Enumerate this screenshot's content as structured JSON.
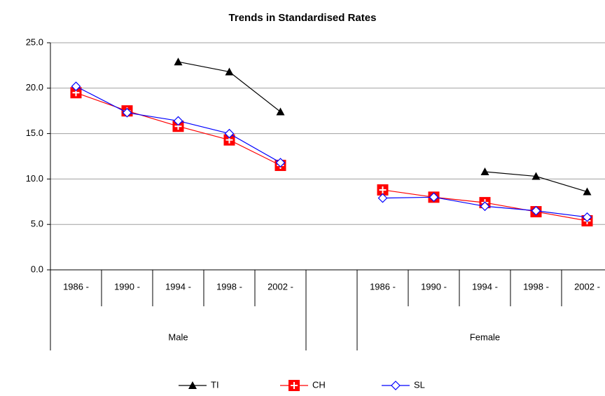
{
  "chart_data": {
    "type": "line",
    "title": "Trends in Standardised Rates",
    "categories": [
      "1986 -",
      "1990 -",
      "1994 -",
      "1998 -",
      "2002 -",
      null,
      "1986 -",
      "1990 -",
      "1994 -",
      "1998 -",
      "2002 -"
    ],
    "groups": [
      "Male",
      "Female"
    ],
    "series": [
      {
        "name": "TI",
        "color": "#000000",
        "marker": "triangle",
        "values": [
          null,
          null,
          22.9,
          21.8,
          17.4,
          null,
          null,
          null,
          10.8,
          10.3,
          8.6
        ]
      },
      {
        "name": "CH",
        "color": "#ff0000",
        "marker": "square-plus",
        "values": [
          19.5,
          17.5,
          15.8,
          14.3,
          11.5,
          null,
          8.8,
          8.0,
          7.4,
          6.4,
          5.4
        ]
      },
      {
        "name": "SL",
        "color": "#0000ff",
        "marker": "diamond",
        "values": [
          20.2,
          17.3,
          16.4,
          15.0,
          11.8,
          null,
          7.9,
          8.0,
          7.0,
          6.5,
          5.8
        ]
      }
    ],
    "ylim": [
      0,
      25
    ],
    "yticks": [
      {
        "value": 0,
        "label": "0.0"
      },
      {
        "value": 5,
        "label": "5.0"
      },
      {
        "value": 10,
        "label": "10.0"
      },
      {
        "value": 15,
        "label": "15.0"
      },
      {
        "value": 20,
        "label": "20.0"
      },
      {
        "value": 25,
        "label": "25.0"
      }
    ],
    "grid": true,
    "legend": "bottom"
  }
}
